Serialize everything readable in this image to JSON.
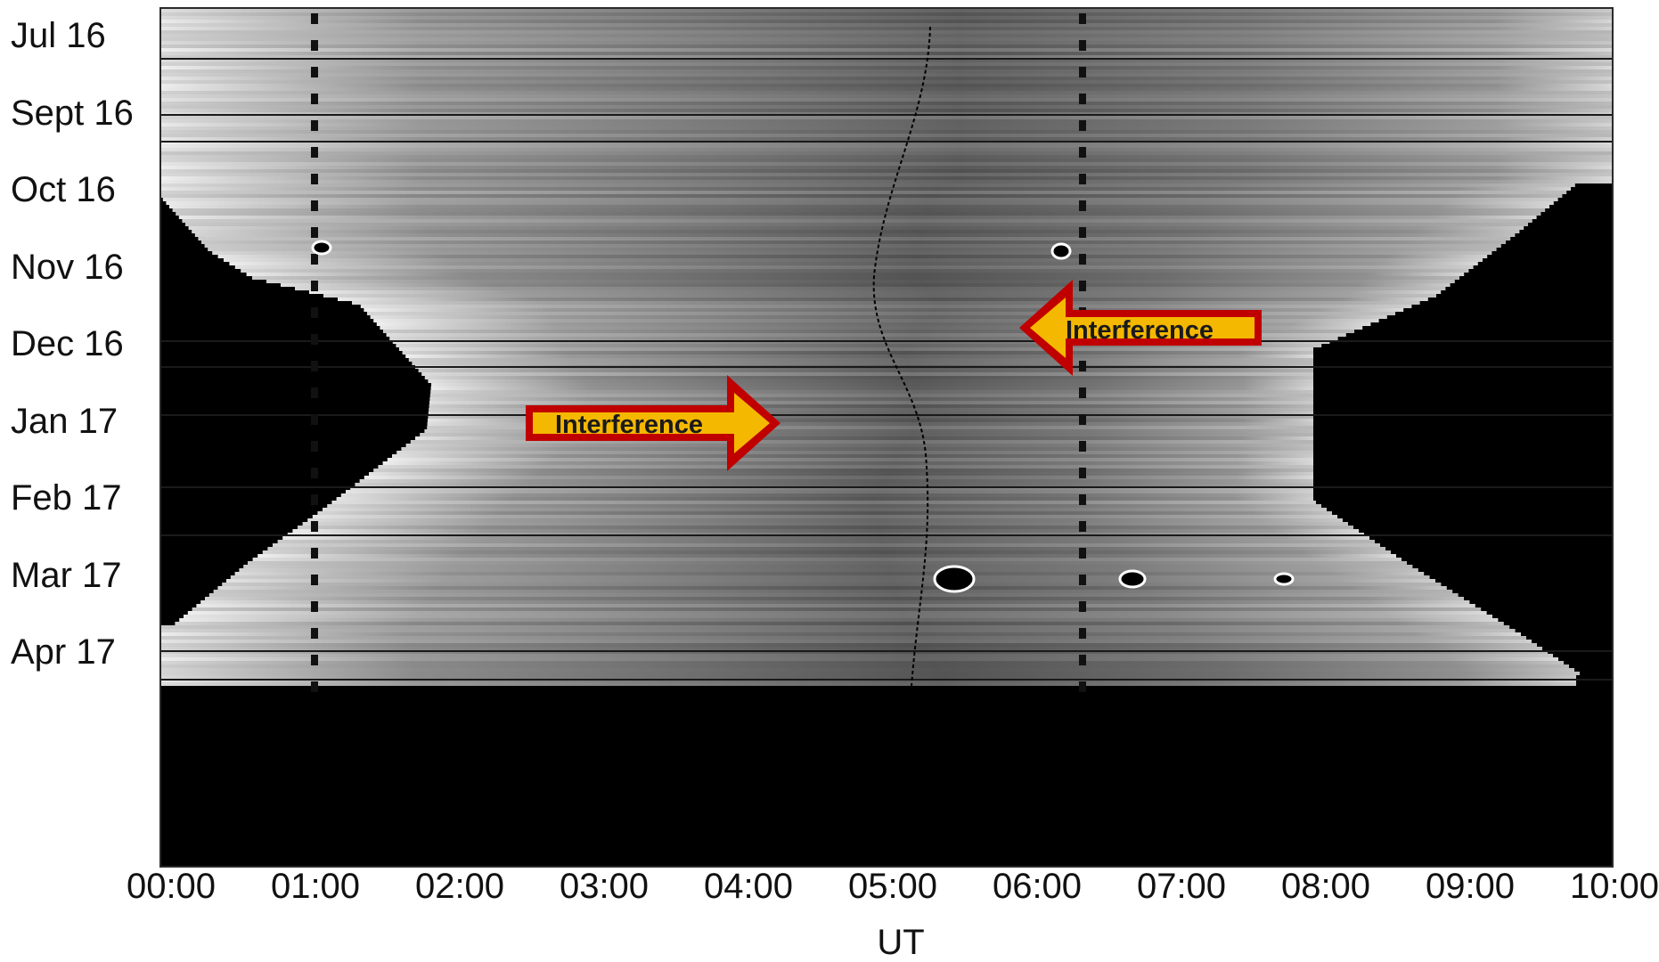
{
  "chart_data": {
    "type": "heatmap",
    "title": "",
    "xlabel": "UT",
    "ylabel": "",
    "x_ticks": [
      "00:00",
      "01:00",
      "02:00",
      "03:00",
      "04:00",
      "05:00",
      "06:00",
      "07:00",
      "08:00",
      "09:00",
      "10:00"
    ],
    "xlim": [
      "00:00",
      "10:00"
    ],
    "y_ticks": [
      "Jul 16",
      "Sept 16",
      "Oct 16",
      "Nov 16",
      "Dec 16",
      "Jan 17",
      "Feb 17",
      "Mar 17",
      "Apr 17"
    ],
    "colormap": "grayscale",
    "grid": false,
    "annotations": [
      {
        "text": "Interference",
        "direction": "right",
        "fill_color": "#f5b800",
        "border_color": "#c00000"
      },
      {
        "text": "Interference",
        "direction": "left",
        "fill_color": "#f5b800",
        "border_color": "#c00000"
      }
    ]
  }
}
